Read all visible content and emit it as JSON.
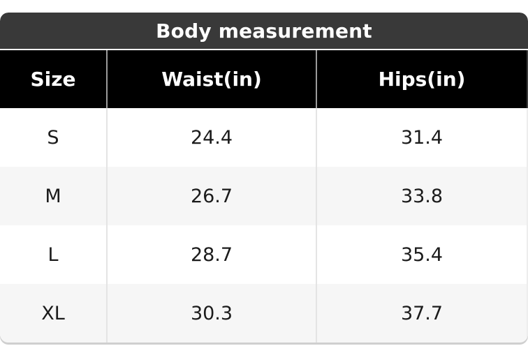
{
  "chart_data": {
    "type": "table",
    "title": "Body measurement",
    "columns": [
      "Size",
      "Waist(in)",
      "Hips(in)"
    ],
    "rows": [
      [
        "S",
        "24.4",
        "31.4"
      ],
      [
        "M",
        "26.7",
        "33.8"
      ],
      [
        "L",
        "28.7",
        "35.4"
      ],
      [
        "XL",
        "30.3",
        "37.7"
      ]
    ]
  },
  "colors": {
    "title_bar_bg": "#393939",
    "header_row_bg": "#000000",
    "header_text": "#ffffff",
    "body_text": "#1b1b1b",
    "row_alt_bg": "#f6f6f6",
    "row_bg": "#ffffff",
    "separator_header": "#9b9b9b",
    "separator_body": "#e4e4e4",
    "bottom_edge": "#cfcfcf"
  }
}
